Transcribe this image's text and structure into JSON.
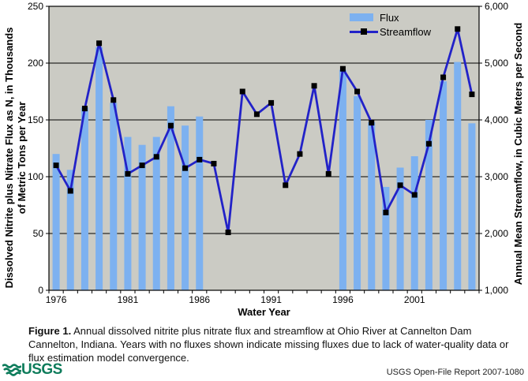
{
  "colors": {
    "bar": "#7DB1F0",
    "line": "#2222C8",
    "marker": "#000000",
    "plot_bg": "#CBCBC4",
    "grid": "#000000",
    "axis": "#000000",
    "usgs_green": "#0E7C5B"
  },
  "chart_data": {
    "type": "combo_bar_line",
    "x": [
      1976,
      1977,
      1978,
      1979,
      1980,
      1981,
      1982,
      1983,
      1984,
      1985,
      1986,
      1987,
      1988,
      1989,
      1990,
      1991,
      1992,
      1993,
      1994,
      1995,
      1996,
      1997,
      1998,
      1999,
      2000,
      2001,
      2002,
      2003,
      2004,
      2005
    ],
    "series": [
      {
        "name": "Flux",
        "type": "bar",
        "axis": "left",
        "values": [
          120,
          106,
          161,
          214,
          165,
          135,
          128,
          135,
          162,
          145,
          153,
          null,
          null,
          null,
          null,
          null,
          null,
          null,
          null,
          null,
          194,
          171,
          148,
          91,
          108,
          118,
          150,
          184,
          201,
          147
        ]
      },
      {
        "name": "Streamflow",
        "type": "line",
        "axis": "right",
        "values": [
          3200,
          2750,
          4200,
          5350,
          4350,
          3050,
          3200,
          3350,
          3900,
          3150,
          3300,
          3230,
          2020,
          4500,
          4100,
          4300,
          2850,
          3400,
          4600,
          3050,
          4900,
          4500,
          3950,
          2370,
          2850,
          2680,
          3580,
          4750,
          5600,
          4450
        ]
      }
    ],
    "title": "",
    "xlabel": "Water Year",
    "x_axis": {
      "title": "Water Year",
      "labeled_years": [
        1976,
        1981,
        1986,
        1991,
        1996,
        2001
      ]
    },
    "left_axis": {
      "title_lines": [
        "Dissolved Nitrite plus Nitrate Flux as N, in Thousands",
        "of Metric Tons per Year"
      ],
      "range": [
        0,
        250
      ],
      "ticks": [
        {
          "v": 0,
          "label": "0"
        },
        {
          "v": 50,
          "label": "50"
        },
        {
          "v": 100,
          "label": "100"
        },
        {
          "v": 150,
          "label": "150"
        },
        {
          "v": 200,
          "label": "200"
        },
        {
          "v": 250,
          "label": "250"
        }
      ]
    },
    "right_axis": {
      "title": "Annual Mean Streamflow, in Cubic Meters per Second",
      "range": [
        1000,
        6000
      ],
      "ticks": [
        {
          "v": 1000,
          "label": "1,000"
        },
        {
          "v": 2000,
          "label": "2,000"
        },
        {
          "v": 3000,
          "label": "3,000"
        },
        {
          "v": 4000,
          "label": "4,000"
        },
        {
          "v": 5000,
          "label": "5,000"
        },
        {
          "v": 6000,
          "label": "6,000"
        }
      ]
    },
    "legend_position": "top-right",
    "grid": true
  },
  "legend": {
    "flux_label": "Flux",
    "streamflow_label": "Streamflow"
  },
  "caption": {
    "label": "Figure 1.",
    "text": " Annual dissolved nitrite plus nitrate flux and streamflow at Ohio River at Cannelton Dam Cannelton, Indiana. Years with no fluxes shown indicate missing fluxes due to lack of water-quality data or flux estimation model convergence."
  },
  "footer": {
    "logo_text": "USGS",
    "report_label": "USGS Open-File Report 2007-1080"
  }
}
